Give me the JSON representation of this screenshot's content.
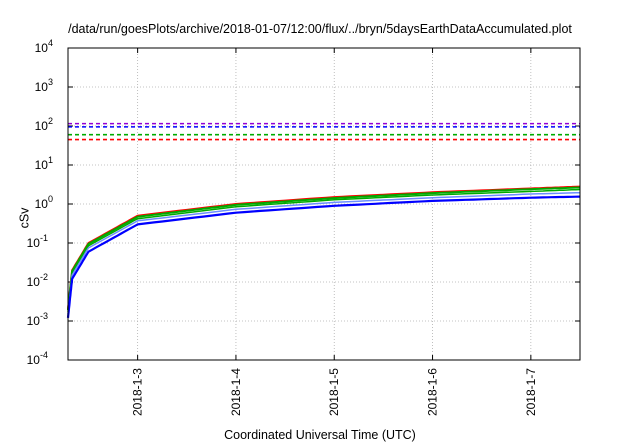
{
  "chart_data": {
    "type": "line",
    "title": "/data/run/goesPlots/archive/2018-01-07/12:00/flux/../bryn/5daysEarthDataAccumulated.plot",
    "xlabel": "Coordinated Universal Time (UTC)",
    "ylabel": "cSv",
    "yscale": "log",
    "ylim": [
      0.0001,
      10000
    ],
    "xlim": [
      "2018-01-02 07:00",
      "2018-01-07 12:00"
    ],
    "grid": true,
    "legend": "none",
    "x_ticks": [
      "2018-1-3",
      "2018-1-4",
      "2018-1-5",
      "2018-1-6",
      "2018-1-7"
    ],
    "y_ticks": [
      {
        "base": "10",
        "exp": "-4"
      },
      {
        "base": "10",
        "exp": "-3"
      },
      {
        "base": "10",
        "exp": "-2"
      },
      {
        "base": "10",
        "exp": "-1"
      },
      {
        "base": "10",
        "exp": "0"
      },
      {
        "base": "10",
        "exp": "1"
      },
      {
        "base": "10",
        "exp": "2"
      },
      {
        "base": "10",
        "exp": "3"
      },
      {
        "base": "10",
        "exp": "4"
      }
    ],
    "thresholds": [
      {
        "color": "#9400d3",
        "value": 115,
        "style": "dashed"
      },
      {
        "color": "#0000ff",
        "value": 95,
        "style": "dashed"
      },
      {
        "color": "#00aa00",
        "value": 60,
        "style": "dashed"
      },
      {
        "color": "#ff0000",
        "value": 45,
        "style": "dashed"
      }
    ],
    "series": [
      {
        "color": "#ff0000",
        "width": 2,
        "x": [
          "2018-01-02 07:00",
          "2018-01-02 08:00",
          "2018-01-02 12:00",
          "2018-01-03 00:00",
          "2018-01-04 00:00",
          "2018-01-05 00:00",
          "2018-01-06 00:00",
          "2018-01-07 00:00",
          "2018-01-07 12:00"
        ],
        "values": [
          0.002,
          0.02,
          0.1,
          0.5,
          1.0,
          1.5,
          2.0,
          2.5,
          2.8
        ]
      },
      {
        "color": "#00aa00",
        "width": 2,
        "x": [
          "2018-01-02 07:00",
          "2018-01-02 08:00",
          "2018-01-02 12:00",
          "2018-01-03 00:00",
          "2018-01-04 00:00",
          "2018-01-05 00:00",
          "2018-01-06 00:00",
          "2018-01-07 00:00",
          "2018-01-07 12:00"
        ],
        "values": [
          0.0019,
          0.019,
          0.095,
          0.47,
          0.95,
          1.42,
          1.9,
          2.4,
          2.65
        ]
      },
      {
        "color": "#00aa00",
        "width": 1.5,
        "x": [
          "2018-01-02 07:00",
          "2018-01-02 08:00",
          "2018-01-02 12:00",
          "2018-01-03 00:00",
          "2018-01-04 00:00",
          "2018-01-05 00:00",
          "2018-01-06 00:00",
          "2018-01-07 00:00",
          "2018-01-07 12:00"
        ],
        "values": [
          0.0017,
          0.017,
          0.085,
          0.42,
          0.85,
          1.28,
          1.7,
          2.1,
          2.35
        ]
      },
      {
        "color": "#6b8cff",
        "width": 1.5,
        "x": [
          "2018-01-02 07:00",
          "2018-01-02 08:00",
          "2018-01-02 12:00",
          "2018-01-03 00:00",
          "2018-01-04 00:00",
          "2018-01-05 00:00",
          "2018-01-06 00:00",
          "2018-01-07 00:00",
          "2018-01-07 12:00"
        ],
        "values": [
          0.0015,
          0.015,
          0.075,
          0.37,
          0.73,
          1.1,
          1.45,
          1.8,
          1.95
        ]
      },
      {
        "color": "#0000ff",
        "width": 2.2,
        "x": [
          "2018-01-02 07:00",
          "2018-01-02 08:00",
          "2018-01-02 12:00",
          "2018-01-03 00:00",
          "2018-01-04 00:00",
          "2018-01-05 00:00",
          "2018-01-06 00:00",
          "2018-01-07 00:00",
          "2018-01-07 12:00"
        ],
        "values": [
          0.0012,
          0.012,
          0.06,
          0.3,
          0.6,
          0.9,
          1.2,
          1.45,
          1.55
        ]
      }
    ]
  }
}
